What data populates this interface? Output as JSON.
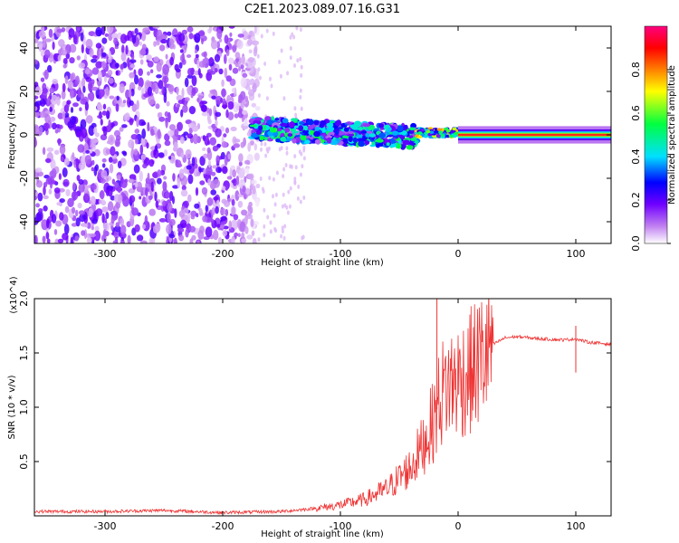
{
  "title": "C2E1.2023.089.07.16.G31",
  "chart_data": [
    {
      "type": "heatmap",
      "xlabel": "Height of straight line (km)",
      "ylabel": "Frequency (Hz)",
      "xlim": [
        -360,
        130
      ],
      "ylim": [
        -50,
        50
      ],
      "x_ticks": [
        -300,
        -200,
        -100,
        0,
        100
      ],
      "y_ticks": [
        -40,
        -20,
        0,
        20,
        40
      ],
      "colorbar": {
        "label": "Normalized spectral amplitude",
        "range": [
          0.0,
          1.0
        ],
        "ticks": [
          "0.0",
          "0.2",
          "0.4",
          "0.6",
          "0.8"
        ],
        "colors": [
          "#ffffff",
          "#c080f0",
          "#7000ff",
          "#0000ff",
          "#00e0ff",
          "#00ff40",
          "#ffff00",
          "#ff8000",
          "#ff0000",
          "#ff0080"
        ]
      },
      "features": [
        {
          "segment": "noise",
          "x": [
            -360,
            -170
          ],
          "freq_range": [
            -50,
            50
          ],
          "amplitude": 0.15
        },
        {
          "segment": "signal_band",
          "x": [
            -175,
            -35
          ],
          "freq_center": 2,
          "freq_spread": 6,
          "amplitude": 0.35
        },
        {
          "segment": "clean_tone",
          "x": [
            0,
            130
          ],
          "freq_center": 0,
          "amplitude": 0.95
        }
      ]
    },
    {
      "type": "line",
      "xlabel": "Height of straight line (km)",
      "ylabel": "SNR (10 * v/v)",
      "y_multiplier": "(x10^4)",
      "xlim": [
        -360,
        130
      ],
      "ylim": [
        0,
        2.0
      ],
      "x_ticks": [
        -300,
        -200,
        -100,
        0,
        100
      ],
      "y_ticks": [
        "0.5",
        "1.0",
        "1.5",
        "2.0"
      ],
      "color": "#ee3333",
      "series": [
        {
          "x": [
            -360,
            -300,
            -250,
            -200,
            -150,
            -120,
            -100,
            -80,
            -60,
            -40,
            -30,
            -20,
            -15,
            -10,
            0,
            10,
            20,
            30,
            40,
            50,
            70,
            90,
            100,
            110,
            130
          ],
          "y": [
            0.04,
            0.04,
            0.05,
            0.03,
            0.04,
            0.07,
            0.1,
            0.15,
            0.25,
            0.45,
            0.65,
            0.9,
            1.1,
            1.2,
            1.25,
            1.32,
            1.45,
            1.58,
            1.64,
            1.65,
            1.63,
            1.62,
            1.63,
            1.6,
            1.58
          ]
        }
      ],
      "spikes": [
        {
          "x": -18,
          "y": 2.0
        },
        {
          "x": 100,
          "y": 1.75
        },
        {
          "x": 100,
          "y": 1.32
        }
      ]
    }
  ]
}
